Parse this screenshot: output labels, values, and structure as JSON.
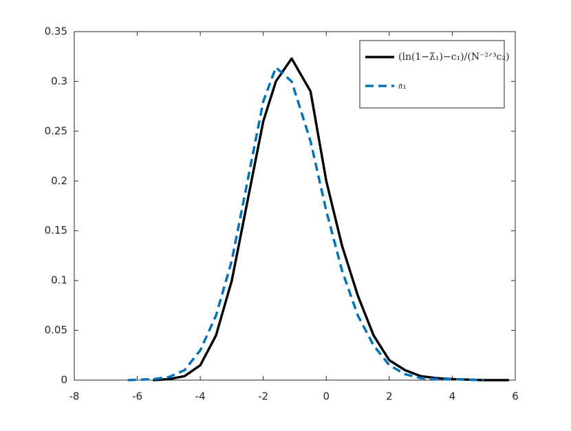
{
  "chart_data": {
    "type": "line",
    "x": [
      -6.3,
      -5.5,
      -5,
      -4.5,
      -4,
      -3.5,
      -3,
      -2.5,
      -2,
      -1.6,
      -1.1,
      -0.5,
      0,
      0.5,
      1,
      1.5,
      2,
      2.5,
      3,
      3.5,
      4,
      5,
      5.8
    ],
    "series": [
      {
        "name": "(ln(1−λ̃₁)−c₁)/(N⁻²ᐟ³c₂)",
        "color": "#000000",
        "dash": false,
        "values": [
          null,
          0,
          0.001,
          0.004,
          0.015,
          0.045,
          0.1,
          0.18,
          0.26,
          0.3,
          0.323,
          0.29,
          0.2,
          0.135,
          0.085,
          0.045,
          0.02,
          0.01,
          0.004,
          0.002,
          0.001,
          0,
          0
        ]
      },
      {
        "name": "𝔞₁",
        "color": "#0072bd",
        "dash": true,
        "values": [
          0,
          0.001,
          0.003,
          0.01,
          0.03,
          0.065,
          0.12,
          0.2,
          0.28,
          0.314,
          0.3,
          0.24,
          0.17,
          0.11,
          0.065,
          0.035,
          0.015,
          0.006,
          0.002,
          0.001,
          0.001,
          0,
          null
        ]
      }
    ],
    "xlim": [
      -8,
      6
    ],
    "xticks": [
      -8,
      -6,
      -4,
      -2,
      0,
      2,
      4,
      6
    ],
    "ylim": [
      0,
      0.35
    ],
    "yticks": [
      0,
      0.05,
      0.1,
      0.15,
      0.2,
      0.25,
      0.3,
      0.35
    ],
    "legend": "top-right"
  }
}
